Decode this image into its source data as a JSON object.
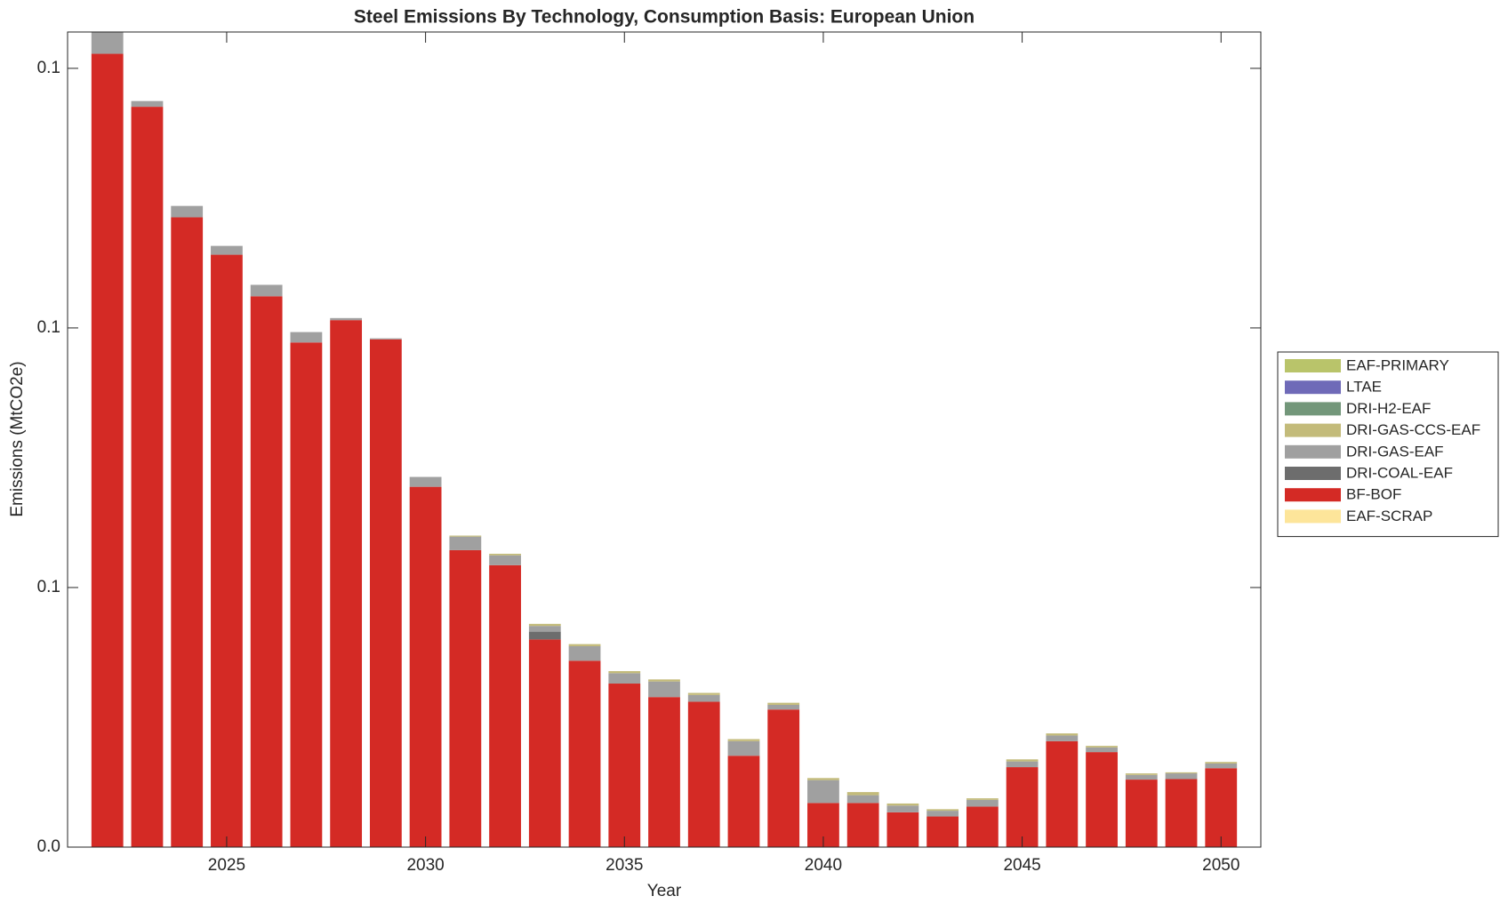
{
  "chart_data": {
    "type": "bar",
    "stacked": true,
    "title": "Steel Emissions By Technology, Consumption Basis: European Union",
    "xlabel": "Year",
    "ylabel": "Emissions (MtCO2e)",
    "x": [
      2022,
      2023,
      2024,
      2025,
      2026,
      2027,
      2028,
      2029,
      2030,
      2031,
      2032,
      2033,
      2034,
      2035,
      2036,
      2037,
      2038,
      2039,
      2040,
      2041,
      2042,
      2043,
      2044,
      2045,
      2046,
      2047,
      2048,
      2049,
      2050
    ],
    "xlim": [
      2021,
      2051
    ],
    "xticks": [
      2025,
      2030,
      2035,
      2040,
      2045,
      2050
    ],
    "ylim": [
      0,
      0.157
    ],
    "yticks": [
      {
        "value": 0,
        "label": "0.0"
      },
      {
        "value": 0.05,
        "label": "0.1"
      },
      {
        "value": 0.1,
        "label": "0.1"
      },
      {
        "value": 0.15,
        "label": "0.1"
      }
    ],
    "legend": "right",
    "series": [
      {
        "name": "EAF-SCRAP",
        "color": "#fde59a",
        "values": [
          0,
          0,
          0,
          0,
          0,
          0,
          0,
          0,
          0,
          0,
          0,
          0,
          0,
          0,
          0,
          0,
          0,
          0,
          0,
          0,
          0,
          0,
          0,
          0,
          0,
          0,
          0,
          0,
          0
        ]
      },
      {
        "name": "BF-BOF",
        "color": "#d42a25",
        "values": [
          0.1528,
          0.1426,
          0.1213,
          0.1141,
          0.1061,
          0.0972,
          0.1015,
          0.0978,
          0.0694,
          0.0572,
          0.0543,
          0.04,
          0.0359,
          0.0315,
          0.0289,
          0.028,
          0.0176,
          0.0265,
          0.0085,
          0.0085,
          0.0067,
          0.0059,
          0.0078,
          0.0154,
          0.0204,
          0.0183,
          0.013,
          0.0131,
          0.0152
        ]
      },
      {
        "name": "DRI-COAL-EAF",
        "color": "#6d6d6d",
        "values": [
          0,
          0,
          0,
          0,
          0,
          0,
          0,
          0,
          0,
          0,
          0,
          0.0015,
          0,
          0,
          0,
          0,
          0,
          0,
          0,
          0,
          0,
          0,
          0,
          0,
          0,
          0,
          0,
          0,
          0
        ]
      },
      {
        "name": "DRI-GAS-EAF",
        "color": "#a0a0a0",
        "values": [
          0.005,
          0.0011,
          0.0022,
          0.0017,
          0.0022,
          0.002,
          0.0004,
          0.0002,
          0.0019,
          0.0026,
          0.0019,
          0.0011,
          0.0028,
          0.002,
          0.003,
          0.0013,
          0.0028,
          0.0009,
          0.0044,
          0.0015,
          0.0013,
          0.0011,
          0.0013,
          0.0011,
          0.0011,
          0.0009,
          0.0009,
          0.0011,
          0.0009
        ]
      },
      {
        "name": "DRI-GAS-CCS-EAF",
        "color": "#c3bb7a",
        "values": [
          0,
          0,
          0,
          0,
          0,
          0,
          0,
          0,
          0,
          0.0002,
          0.0003,
          0.0004,
          0.0004,
          0.0004,
          0.0004,
          0.0004,
          0.0004,
          0.0004,
          0.0004,
          0.0006,
          0.0004,
          0.0003,
          0.0003,
          0.0004,
          0.0004,
          0.0003,
          0.0003,
          0.0002,
          0.0003
        ]
      },
      {
        "name": "DRI-H2-EAF",
        "color": "#73977a",
        "values": [
          0,
          0,
          0,
          0,
          0,
          0,
          0,
          0,
          0,
          0,
          0,
          0,
          0,
          0,
          0,
          0,
          0,
          0,
          0,
          0,
          0,
          0,
          0,
          0,
          0,
          0,
          0,
          0,
          0
        ]
      },
      {
        "name": "LTAE",
        "color": "#6f6ab8",
        "values": [
          0,
          0,
          0,
          0,
          0,
          0,
          0,
          0,
          0,
          0,
          0,
          0,
          0,
          0,
          0,
          0,
          0,
          0,
          0,
          0,
          0,
          0,
          0,
          0,
          0,
          0,
          0,
          0,
          0
        ]
      },
      {
        "name": "EAF-PRIMARY",
        "color": "#b9c46a",
        "values": [
          0,
          0,
          0,
          0,
          0,
          0,
          0,
          0,
          0,
          0,
          0,
          0,
          0,
          0,
          0,
          0,
          0,
          0,
          0,
          0,
          0,
          0,
          0,
          0,
          0,
          0,
          0,
          0,
          0
        ]
      }
    ]
  }
}
